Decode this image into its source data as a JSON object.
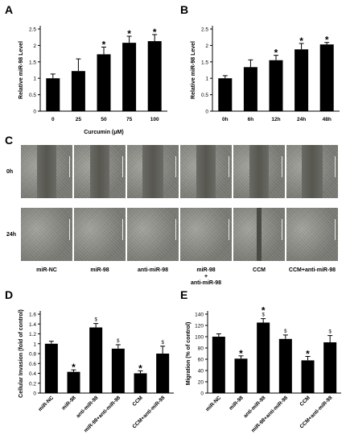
{
  "panels": {
    "a": "A",
    "b": "B",
    "c": "C",
    "d": "D",
    "e": "E"
  },
  "chart_data": [
    {
      "panel": "A",
      "type": "bar",
      "categories": [
        "0",
        "25",
        "50",
        "75",
        "100"
      ],
      "values": [
        1.0,
        1.22,
        1.73,
        2.08,
        2.13
      ],
      "errors": [
        0.13,
        0.37,
        0.22,
        0.2,
        0.2
      ],
      "marks": [
        "",
        "",
        "*",
        "*",
        "*"
      ],
      "xlabel": "Curcumin (μM)",
      "ylabel": "Relative miR-98 Level",
      "ylim": [
        0,
        2.5
      ],
      "yticks": [
        "0",
        "0.5",
        "1",
        "1.5",
        "2",
        "2.5"
      ],
      "grid": false
    },
    {
      "panel": "B",
      "type": "bar",
      "categories": [
        "0h",
        "6h",
        "12h",
        "24h",
        "48h"
      ],
      "values": [
        1.0,
        1.34,
        1.55,
        1.88,
        2.03
      ],
      "errors": [
        0.08,
        0.22,
        0.15,
        0.18,
        0.06
      ],
      "marks": [
        "",
        "",
        "*",
        "*",
        "*"
      ],
      "xlabel": "",
      "ylabel": "Relative miR-98 Level",
      "ylim": [
        0,
        2.5
      ],
      "yticks": [
        "0",
        "0.5",
        "1",
        "1.5",
        "2",
        "2.5"
      ],
      "grid": false
    },
    {
      "panel": "D",
      "type": "bar",
      "categories": [
        "miR-NC",
        "miR-98",
        "anti-miR-98",
        "miR-98+anti-miR-98",
        "CCM",
        "CCM+anti-miR-98"
      ],
      "values": [
        1.0,
        0.43,
        1.33,
        0.9,
        0.4,
        0.8
      ],
      "errors": [
        0.05,
        0.04,
        0.08,
        0.08,
        0.05,
        0.15
      ],
      "marks": [
        "",
        "*",
        "$",
        "$",
        "*",
        "$"
      ],
      "xlabel": "",
      "ylabel": "Cellular Invasion (fold of control)",
      "ylim": [
        0,
        1.6
      ],
      "yticks": [
        "0",
        "0.2",
        "0.4",
        "0.6",
        "0.8",
        "1",
        "1.2",
        "1.4",
        "1.6"
      ],
      "grid": false
    },
    {
      "panel": "E",
      "type": "bar",
      "categories": [
        "miR-NC",
        "miR-98",
        "anti-miR-98",
        "miR-98+anti-miR-98",
        "CCM",
        "CCM+anti-miR-98"
      ],
      "values": [
        100,
        61,
        125,
        96,
        58,
        90
      ],
      "errors": [
        5,
        5,
        7,
        7,
        7,
        12
      ],
      "marks": [
        "",
        "*",
        "*$",
        "$",
        "*",
        "$"
      ],
      "xlabel": "",
      "ylabel": "Migration (% of control)",
      "ylim": [
        0,
        140
      ],
      "yticks": [
        "0",
        "20",
        "40",
        "60",
        "80",
        "100",
        "120",
        "140"
      ],
      "grid": false
    }
  ],
  "micrographs": {
    "row_labels": [
      "0h",
      "24h"
    ],
    "column_labels": [
      "miR-NC",
      "miR-98",
      "anti-miR-98",
      "miR-98 + anti-miR-98",
      "CCM",
      "CCM+anti-miR-98"
    ],
    "column_label_lines": [
      [
        "miR-NC"
      ],
      [
        "miR-98"
      ],
      [
        "anti-miR-98"
      ],
      [
        "miR-98",
        "+",
        "anti-miR-98"
      ],
      [
        "CCM"
      ],
      [
        "CCM+anti-miR-98"
      ]
    ],
    "wound_open_fraction_0h": [
      0.38,
      0.36,
      0.4,
      0.38,
      0.36,
      0.4
    ],
    "wound_open_fraction_24h": [
      0.0,
      0.0,
      0.0,
      0.0,
      0.1,
      0.0
    ]
  }
}
